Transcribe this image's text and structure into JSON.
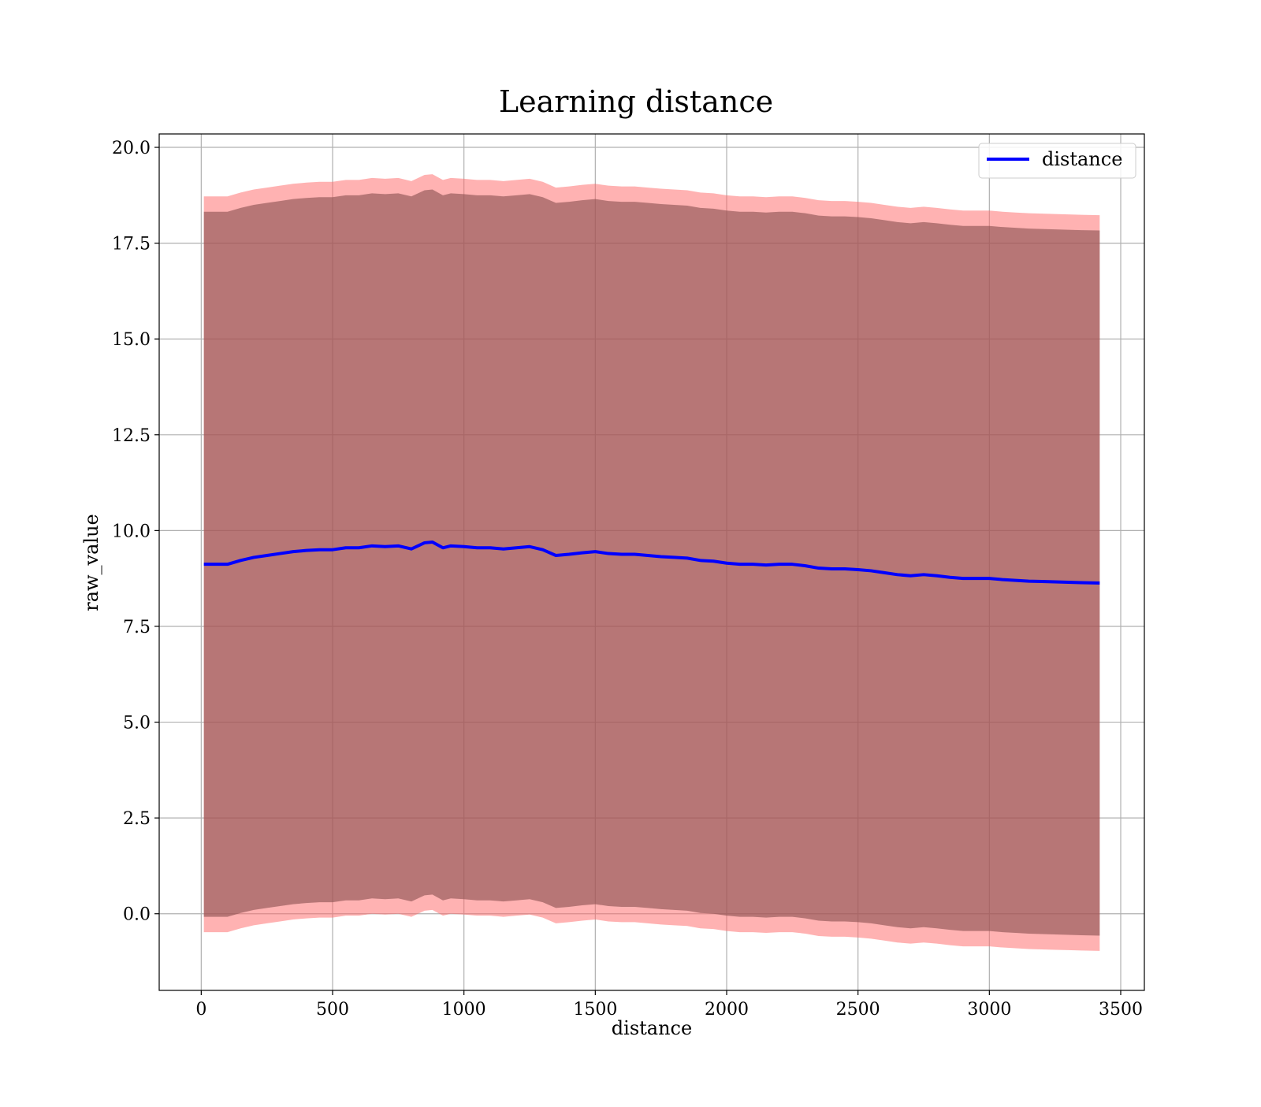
{
  "chart_data": {
    "type": "line",
    "title": "Learning distance",
    "xlabel": "distance",
    "ylabel": "raw_value",
    "xlim": [
      -160,
      3590
    ],
    "ylim": [
      -2.0,
      20.35
    ],
    "xticks": [
      0,
      500,
      1000,
      1500,
      2000,
      2500,
      3000,
      3500
    ],
    "xtick_labels": [
      "0",
      "500",
      "1000",
      "1500",
      "2000",
      "2500",
      "3000",
      "3500"
    ],
    "yticks": [
      0.0,
      2.5,
      5.0,
      7.5,
      10.0,
      12.5,
      15.0,
      17.5,
      20.0
    ],
    "ytick_labels": [
      "0.0",
      "2.5",
      "5.0",
      "7.5",
      "10.0",
      "12.5",
      "15.0",
      "17.5",
      "20.0"
    ],
    "grid": true,
    "legend_position": "top-right",
    "series": [
      {
        "name": "distance",
        "color": "#0000ff",
        "x": [
          10,
          50,
          100,
          150,
          200,
          250,
          300,
          350,
          400,
          450,
          500,
          550,
          600,
          650,
          700,
          750,
          800,
          850,
          880,
          920,
          950,
          1000,
          1050,
          1100,
          1150,
          1200,
          1250,
          1300,
          1350,
          1400,
          1450,
          1500,
          1550,
          1600,
          1650,
          1700,
          1750,
          1800,
          1850,
          1900,
          1950,
          2000,
          2050,
          2100,
          2150,
          2200,
          2250,
          2300,
          2350,
          2400,
          2450,
          2500,
          2550,
          2600,
          2650,
          2700,
          2750,
          2800,
          2850,
          2900,
          2950,
          3000,
          3050,
          3100,
          3150,
          3200,
          3250,
          3300,
          3350,
          3420
        ],
        "y": [
          9.12,
          9.12,
          9.12,
          9.22,
          9.3,
          9.35,
          9.4,
          9.45,
          9.48,
          9.5,
          9.5,
          9.55,
          9.55,
          9.6,
          9.58,
          9.6,
          9.52,
          9.68,
          9.7,
          9.55,
          9.6,
          9.58,
          9.55,
          9.55,
          9.52,
          9.55,
          9.58,
          9.5,
          9.35,
          9.38,
          9.42,
          9.45,
          9.4,
          9.38,
          9.38,
          9.35,
          9.32,
          9.3,
          9.28,
          9.22,
          9.2,
          9.15,
          9.12,
          9.12,
          9.1,
          9.12,
          9.12,
          9.08,
          9.02,
          9.0,
          9.0,
          8.98,
          8.95,
          8.9,
          8.85,
          8.82,
          8.85,
          8.82,
          8.78,
          8.75,
          8.75,
          8.75,
          8.72,
          8.7,
          8.68,
          8.67,
          8.66,
          8.65,
          8.64,
          8.63
        ]
      }
    ],
    "bands": [
      {
        "label": "",
        "color": "#ff6666",
        "opacity": 0.5,
        "upper_offset": 9.6,
        "lower_offset": -9.6
      },
      {
        "label": "",
        "color": "#8b5050",
        "opacity": 0.62,
        "upper_offset": 9.2,
        "lower_offset": -9.2
      }
    ]
  }
}
